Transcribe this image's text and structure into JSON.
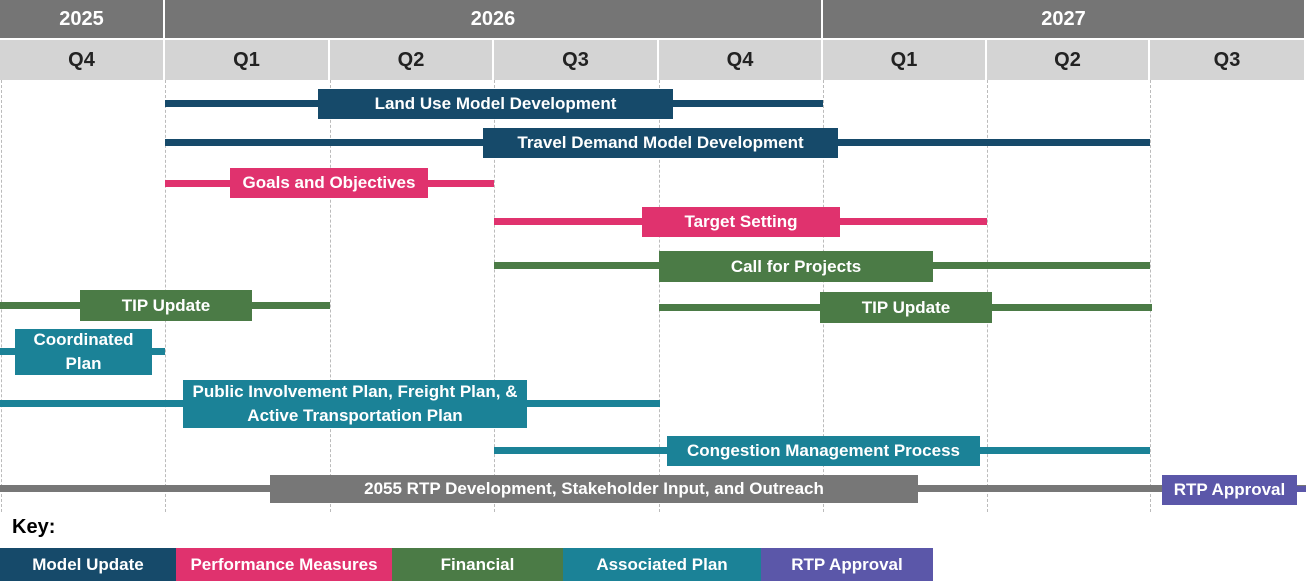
{
  "header": {
    "years": [
      "2025",
      "2026",
      "2027"
    ],
    "quarters": [
      "Q4",
      "Q1",
      "Q2",
      "Q3",
      "Q4",
      "Q1",
      "Q2",
      "Q3"
    ]
  },
  "tasks": [
    {
      "label": "Land Use Model Development"
    },
    {
      "label": "Travel Demand Model Development"
    },
    {
      "label": "Goals and Objectives"
    },
    {
      "label": "Target Setting"
    },
    {
      "label": "Call for Projects"
    },
    {
      "label": "TIP Update"
    },
    {
      "label": "TIP Update"
    },
    {
      "label": "Coordinated Plan"
    },
    {
      "label": "Public Involvement Plan, Freight Plan, & Active Transportation Plan"
    },
    {
      "label": "Congestion Management Process"
    },
    {
      "label": "2055 RTP Development, Stakeholder Input, and Outreach"
    },
    {
      "label": "RTP Approval"
    }
  ],
  "key": {
    "title": "Key:",
    "items": [
      "Model Update",
      "Performance Measures",
      "Financial",
      "Associated Plan",
      "RTP Approval"
    ]
  }
}
